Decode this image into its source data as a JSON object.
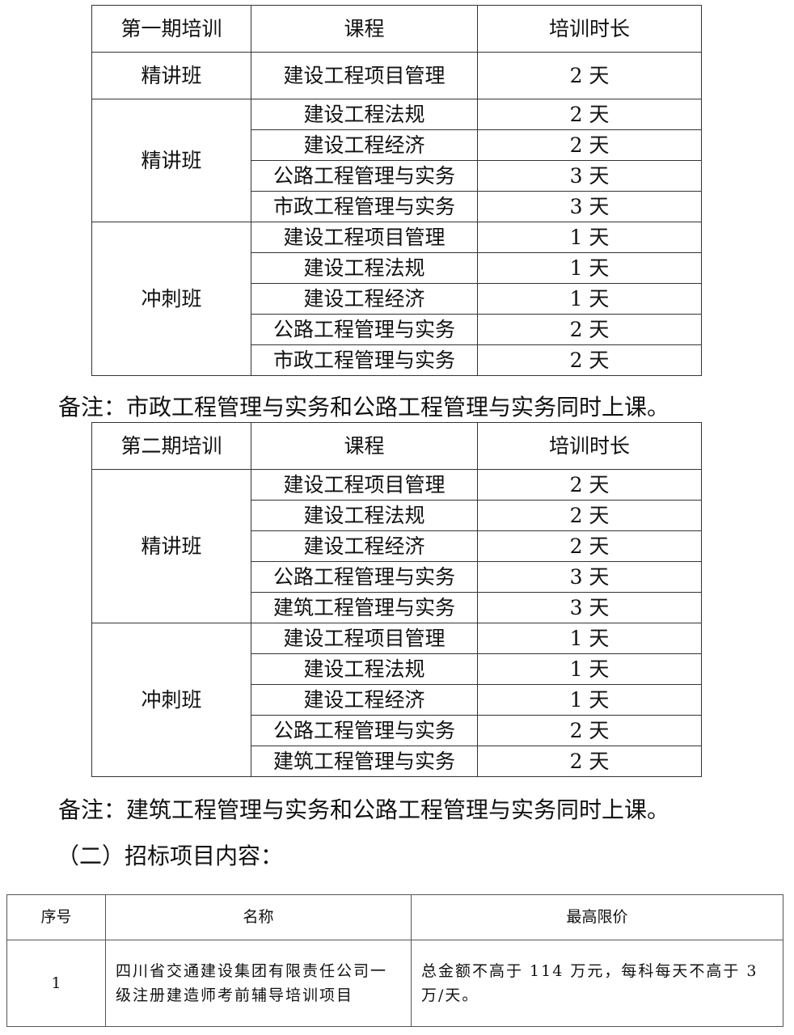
{
  "table1": {
    "headers": [
      "第一期培训",
      "课程",
      "培训时长"
    ],
    "groups": [
      {
        "class": "精讲班",
        "rows": [
          [
            "建设工程项目管理",
            "2 天"
          ]
        ]
      },
      {
        "class": "精讲班",
        "rows": [
          [
            "建设工程法规",
            "2 天"
          ],
          [
            "建设工程经济",
            "2 天"
          ],
          [
            "公路工程管理与实务",
            "3 天"
          ],
          [
            "市政工程管理与实务",
            "3 天"
          ]
        ]
      },
      {
        "class": "冲刺班",
        "rows": [
          [
            "建设工程项目管理",
            "1 天"
          ],
          [
            "建设工程法规",
            "1 天"
          ],
          [
            "建设工程经济",
            "1 天"
          ],
          [
            "公路工程管理与实务",
            "2 天"
          ],
          [
            "市政工程管理与实务",
            "2 天"
          ]
        ]
      }
    ]
  },
  "note1": "备注：市政工程管理与实务和公路工程管理与实务同时上课。",
  "table2": {
    "headers": [
      "第二期培训",
      "课程",
      "培训时长"
    ],
    "groups": [
      {
        "class": "精讲班",
        "rows": [
          [
            "建设工程项目管理",
            "2 天"
          ],
          [
            "建设工程法规",
            "2 天"
          ],
          [
            "建设工程经济",
            "2 天"
          ],
          [
            "公路工程管理与实务",
            "3 天"
          ],
          [
            "建筑工程管理与实务",
            "3 天"
          ]
        ]
      },
      {
        "class": "冲刺班",
        "rows": [
          [
            "建设工程项目管理",
            "1 天"
          ],
          [
            "建设工程法规",
            "1 天"
          ],
          [
            "建设工程经济",
            "1 天"
          ],
          [
            "公路工程管理与实务",
            "2 天"
          ],
          [
            "建筑工程管理与实务",
            "2 天"
          ]
        ]
      }
    ]
  },
  "note2": "备注：建筑工程管理与实务和公路工程管理与实务同时上课。",
  "section_heading": "（二）招标项目内容：",
  "table3": {
    "headers": [
      "序号",
      "名称",
      "最高限价"
    ],
    "rows": [
      [
        "1",
        "四川省交通建设集团有限责任公司一级注册建造师考前辅导培训项目",
        "总金额不高于 114 万元，每科每天不高于 3 万/天。"
      ]
    ]
  }
}
